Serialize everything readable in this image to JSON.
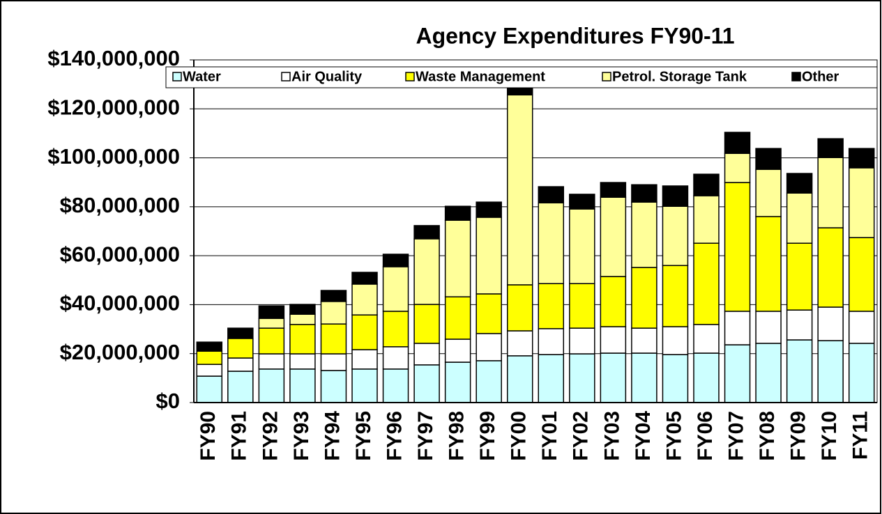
{
  "chart_data": {
    "type": "stacked_bar",
    "title": "Agency Expenditures FY90-11",
    "categories": [
      "FY90",
      "FY91",
      "FY92",
      "FY93",
      "FY94",
      "FY95",
      "FY96",
      "FY97",
      "FY98",
      "FY99",
      "FY00",
      "FY01",
      "FY02",
      "FY03",
      "FY04",
      "FY05",
      "FY06",
      "FY07",
      "FY08",
      "FY09",
      "FY10",
      "FY11"
    ],
    "series": [
      {
        "name": "Water",
        "color": "#ccffff",
        "values": [
          10800000,
          12800000,
          13700000,
          13700000,
          13100000,
          13700000,
          13700000,
          15400000,
          16500000,
          17100000,
          19100000,
          19600000,
          19900000,
          20200000,
          20200000,
          19600000,
          20200000,
          23600000,
          24200000,
          25600000,
          25300000,
          24200000
        ]
      },
      {
        "name": "Air Quality",
        "color": "#ffffff",
        "values": [
          4800000,
          5400000,
          6200000,
          6200000,
          6800000,
          7900000,
          9100000,
          8800000,
          9400000,
          11100000,
          10200000,
          10600000,
          10500000,
          10800000,
          10200000,
          11400000,
          11700000,
          13700000,
          13100000,
          12200000,
          13700000,
          13100000
        ]
      },
      {
        "name": "Waste Management",
        "color": "#ffff00",
        "values": [
          5400000,
          8000000,
          10500000,
          12000000,
          12200000,
          14200000,
          14500000,
          15900000,
          17300000,
          16200000,
          18800000,
          18400000,
          18200000,
          20500000,
          24800000,
          25000000,
          33200000,
          52600000,
          38700000,
          27300000,
          32400000,
          30100000
        ]
      },
      {
        "name": "Petrol. Storage Tank",
        "color": "#ffff99",
        "values": [
          0,
          0,
          4000000,
          4200000,
          9200000,
          12600000,
          18200000,
          26800000,
          31300000,
          31300000,
          77600000,
          33000000,
          30500000,
          32400000,
          26700000,
          24200000,
          19400000,
          11900000,
          19300000,
          20500000,
          28700000,
          28500000
        ]
      },
      {
        "name": "Other",
        "color": "#000000",
        "values": [
          3700000,
          4200000,
          5100000,
          4000000,
          4500000,
          4800000,
          5100000,
          5400000,
          5700000,
          6200000,
          4000000,
          6600000,
          6000000,
          6000000,
          7100000,
          8300000,
          8800000,
          8600000,
          8500000,
          8000000,
          7700000,
          7900000
        ]
      }
    ],
    "ylim": [
      0,
      140000000
    ],
    "yticks": [
      {
        "value": 0,
        "label": "$0"
      },
      {
        "value": 20000000,
        "label": "$20,000,000"
      },
      {
        "value": 40000000,
        "label": "$40,000,000"
      },
      {
        "value": 60000000,
        "label": "$60,000,000"
      },
      {
        "value": 80000000,
        "label": "$80,000,000"
      },
      {
        "value": 100000000,
        "label": "$100,000,000"
      },
      {
        "value": 120000000,
        "label": "$120,000,000"
      },
      {
        "value": 140000000,
        "label": "$140,000,000"
      }
    ],
    "grid": true,
    "legend": "top"
  }
}
